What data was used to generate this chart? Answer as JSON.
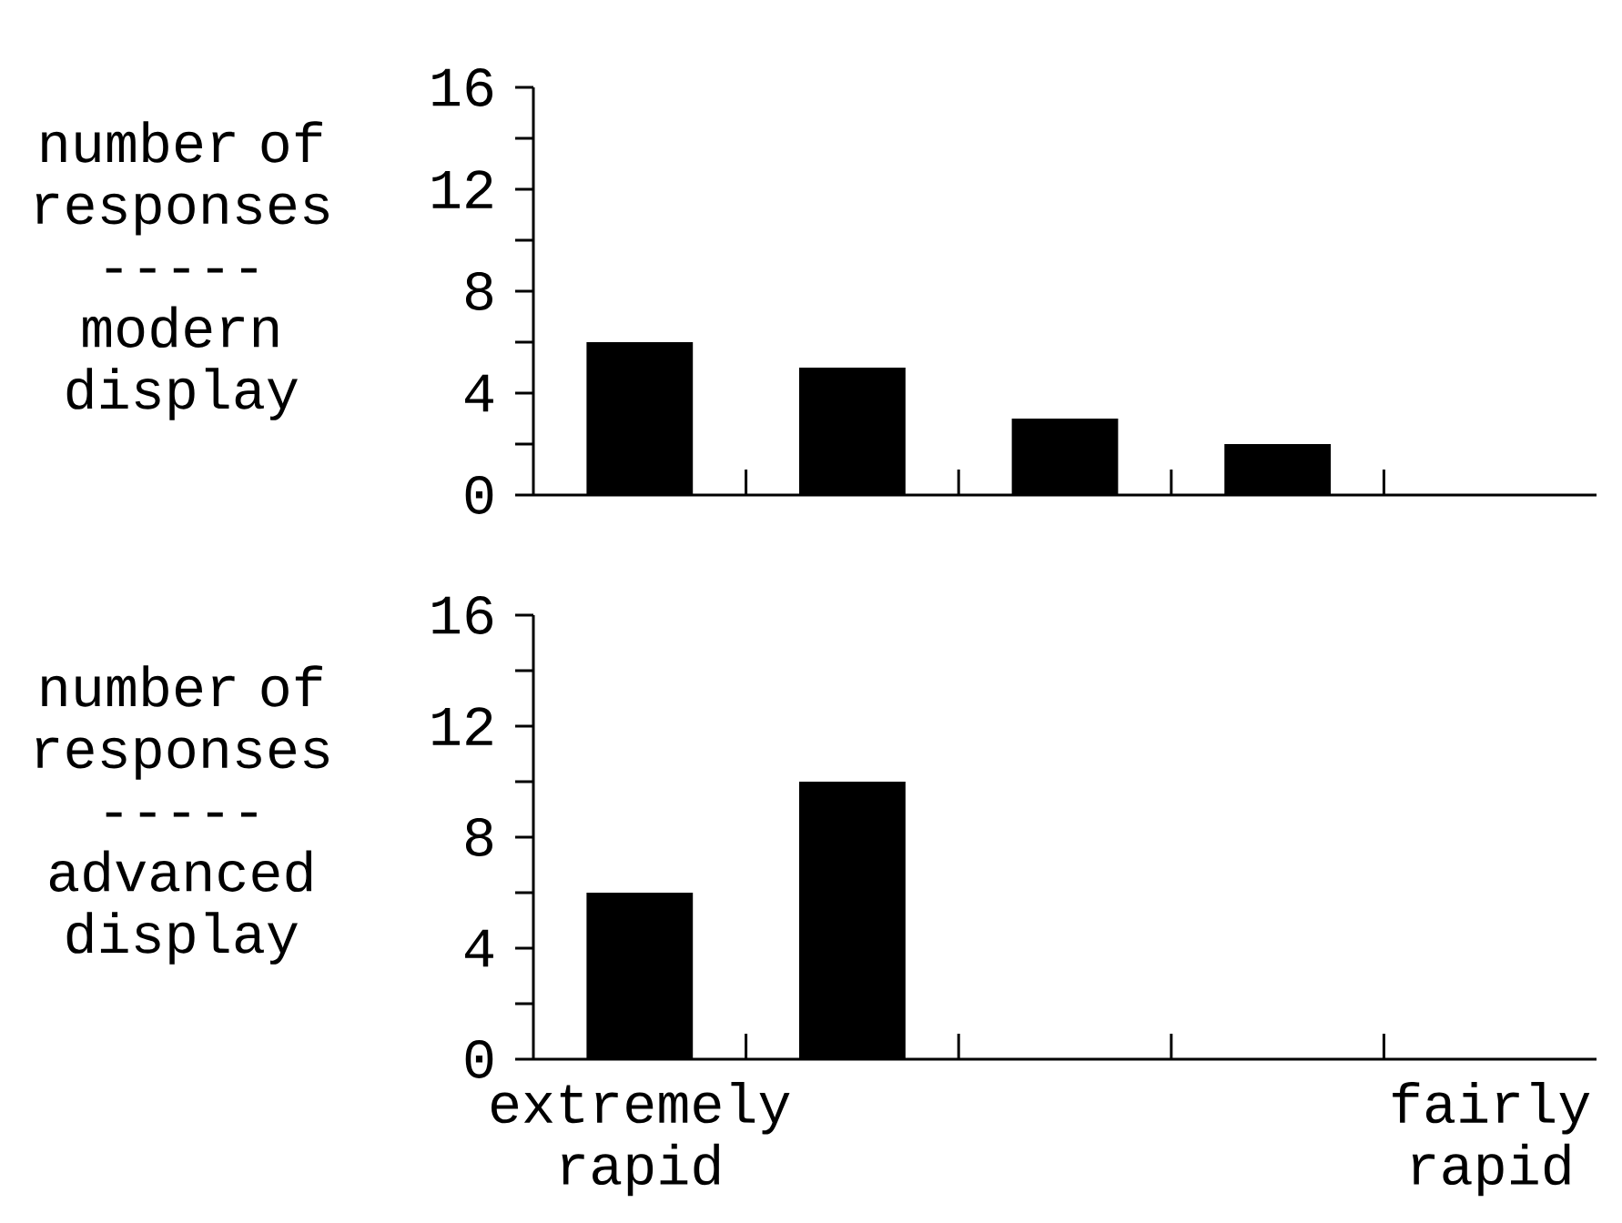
{
  "chart_data": [
    {
      "type": "bar",
      "ylabel": "number of responses ----- modern display",
      "categories": [
        null,
        null,
        null,
        null,
        null
      ],
      "series": [
        {
          "color": "#000000",
          "values": [
            6,
            5,
            3,
            2,
            0
          ]
        }
      ],
      "ylim": [
        0,
        16
      ],
      "yticks": [
        0,
        {
          "value": 2,
          "label": null
        },
        4,
        {
          "value": 6,
          "label": null
        },
        8,
        {
          "value": 10,
          "label": null
        },
        12,
        {
          "value": 14,
          "label": null
        },
        16
      ]
    },
    {
      "type": "bar",
      "ylabel": "number of responses ----- advanced display",
      "categories": [
        "extremely rapid",
        null,
        null,
        null,
        "fairly rapid"
      ],
      "series": [
        {
          "color": "#000000",
          "values": [
            6,
            10,
            0,
            0,
            0
          ]
        }
      ],
      "ylim": [
        0,
        16
      ],
      "yticks": [
        0,
        {
          "value": 2,
          "label": null
        },
        4,
        {
          "value": 6,
          "label": null
        },
        8,
        {
          "value": 10,
          "label": null
        },
        12,
        {
          "value": 14,
          "label": null
        },
        16
      ]
    }
  ]
}
